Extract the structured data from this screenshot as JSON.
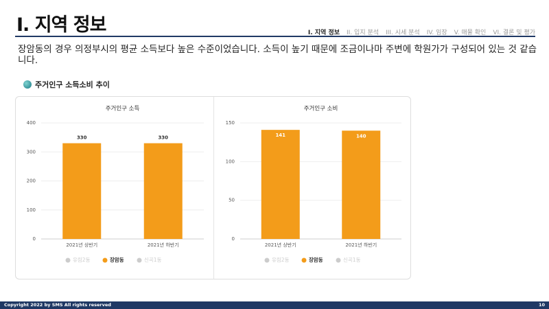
{
  "header": {
    "title": "I. 지역 정보",
    "nav": [
      "I. 지역 정보",
      "II. 입지 분석",
      "III. 시세 분석",
      "IV. 임장",
      "V. 매물 확인",
      "VI. 결론 및 평가"
    ]
  },
  "paragraph": "장암동의 경우 의정부시의 평균 소득보다 높은 수준이었습니다. 소득이 높기 때문에 조금이나마 주변에 학원가가 구성되어 있는 것 같습니다.",
  "section_title": "주거인구 소득소비 추이",
  "chart_data": [
    {
      "type": "bar",
      "title": "주거인구 소득",
      "categories": [
        "2021년 상반기",
        "2021년 하반기"
      ],
      "series": [
        {
          "name": "유림2동",
          "color": "#cccccc",
          "values": [
            null,
            null
          ],
          "visible": false
        },
        {
          "name": "장암동",
          "color": "#f39c1a",
          "values": [
            330,
            330
          ],
          "visible": true
        },
        {
          "name": "신곡1동",
          "color": "#cccccc",
          "values": [
            null,
            null
          ],
          "visible": false
        }
      ],
      "ylim": [
        0,
        400
      ],
      "yticks": [
        0,
        100,
        200,
        300,
        400
      ],
      "grid": true
    },
    {
      "type": "bar",
      "title": "주거인구 소비",
      "categories": [
        "2021년 상반기",
        "2021년 하반기"
      ],
      "series": [
        {
          "name": "유림2동",
          "color": "#cccccc",
          "values": [
            null,
            null
          ],
          "visible": false
        },
        {
          "name": "장암동",
          "color": "#f39c1a",
          "values": [
            141,
            140
          ],
          "visible": true
        },
        {
          "name": "신곡1동",
          "color": "#cccccc",
          "values": [
            null,
            null
          ],
          "visible": false
        }
      ],
      "ylim": [
        0,
        150
      ],
      "yticks": [
        0,
        50,
        100,
        150
      ],
      "grid": true
    }
  ],
  "footer": {
    "copyright": "Copyright 2022 by SMS All rights reserved",
    "page": "10"
  }
}
